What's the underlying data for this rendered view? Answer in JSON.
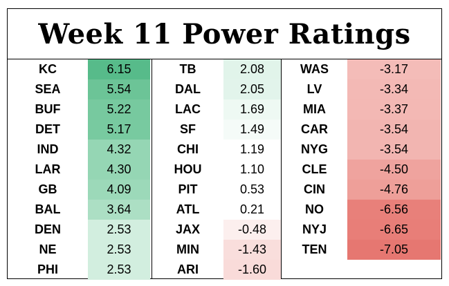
{
  "title": "Week 11 Power Ratings",
  "columns": [
    [
      {
        "team": "KC",
        "rating": "6.15",
        "color": "#57bb8a"
      },
      {
        "team": "SEA",
        "rating": "5.54",
        "color": "#6cc497"
      },
      {
        "team": "BUF",
        "rating": "5.22",
        "color": "#77c99f"
      },
      {
        "team": "DET",
        "rating": "5.17",
        "color": "#78caa0"
      },
      {
        "team": "IND",
        "rating": "4.32",
        "color": "#95d6b4"
      },
      {
        "team": "LAR",
        "rating": "4.30",
        "color": "#95d6b4"
      },
      {
        "team": "GB",
        "rating": "4.09",
        "color": "#9cd9b9"
      },
      {
        "team": "BAL",
        "rating": "3.64",
        "color": "#acdfc4"
      },
      {
        "team": "DEN",
        "rating": "2.53",
        "color": "#d2eedf"
      },
      {
        "team": "NE",
        "rating": "2.53",
        "color": "#d2eedf"
      },
      {
        "team": "PHI",
        "rating": "2.53",
        "color": "#d2eedf"
      }
    ],
    [
      {
        "team": "TB",
        "rating": "2.08",
        "color": "#e1f4ea"
      },
      {
        "team": "DAL",
        "rating": "2.05",
        "color": "#e2f4eb"
      },
      {
        "team": "LAC",
        "rating": "1.69",
        "color": "#eef9f3"
      },
      {
        "team": "SF",
        "rating": "1.49",
        "color": "#f5fbf8"
      },
      {
        "team": "CHI",
        "rating": "1.19",
        "color": "#ffffff"
      },
      {
        "team": "HOU",
        "rating": "1.10",
        "color": "#ffffff"
      },
      {
        "team": "PIT",
        "rating": "0.53",
        "color": "#ffffff"
      },
      {
        "team": "ATL",
        "rating": "0.21",
        "color": "#ffffff"
      },
      {
        "team": "JAX",
        "rating": "-0.48",
        "color": "#fcefee"
      },
      {
        "team": "MIN",
        "rating": "-1.43",
        "color": "#f9dedc"
      },
      {
        "team": "ARI",
        "rating": "-1.60",
        "color": "#f9dbd9"
      }
    ],
    [
      {
        "team": "WAS",
        "rating": "-3.17",
        "color": "#f4bcb8"
      },
      {
        "team": "LV",
        "rating": "-3.34",
        "color": "#f3b9b5"
      },
      {
        "team": "MIA",
        "rating": "-3.37",
        "color": "#f3b8b4"
      },
      {
        "team": "CAR",
        "rating": "-3.54",
        "color": "#f2b5b1"
      },
      {
        "team": "NYG",
        "rating": "-3.54",
        "color": "#f2b5b1"
      },
      {
        "team": "CLE",
        "rating": "-4.50",
        "color": "#efa39e"
      },
      {
        "team": "CIN",
        "rating": "-4.76",
        "color": "#ee9f99"
      },
      {
        "team": "NO",
        "rating": "-6.56",
        "color": "#e8807a"
      },
      {
        "team": "NYJ",
        "rating": "-6.65",
        "color": "#e87e78"
      },
      {
        "team": "TEN",
        "rating": "-7.05",
        "color": "#e67771"
      }
    ]
  ]
}
